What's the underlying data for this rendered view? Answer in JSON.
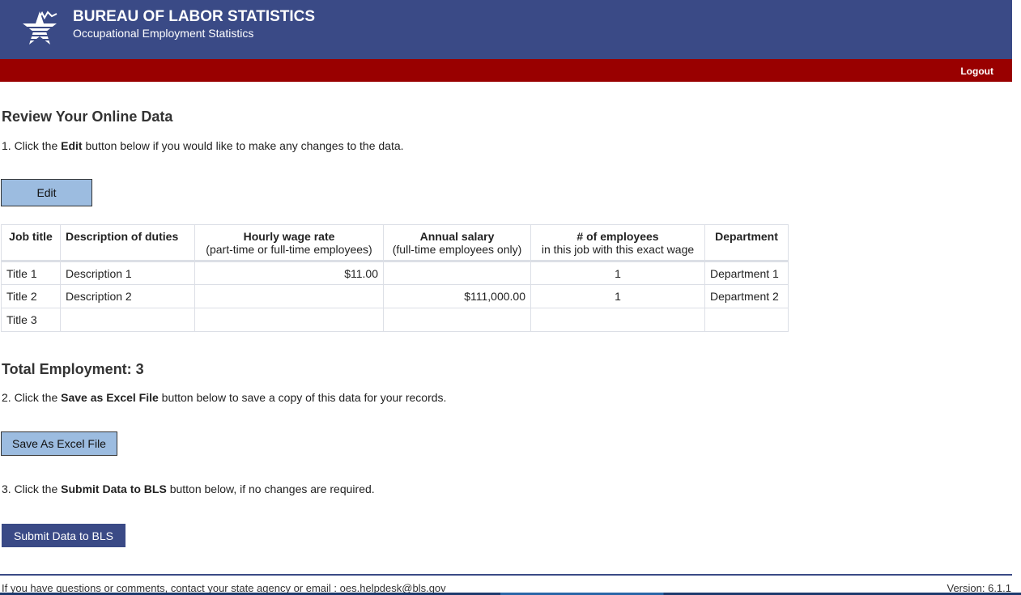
{
  "header": {
    "title": "BUREAU OF LABOR STATISTICS",
    "subtitle": "Occupational Employment Statistics",
    "logout": "Logout"
  },
  "colors": {
    "header": "#3a4a86",
    "redbar": "#990000",
    "button_light": "#9cbce0"
  },
  "main": {
    "title": "Review Your Online Data",
    "step1": {
      "pre": "1. Click the ",
      "bold": "Edit",
      "post": " button below if you would like to make any changes to the data."
    },
    "edit_label": "Edit",
    "table": {
      "headers": [
        {
          "title": "Job title",
          "sub": ""
        },
        {
          "title": "Description of duties",
          "sub": ""
        },
        {
          "title": "Hourly wage rate",
          "sub": "(part-time or full-time employees)"
        },
        {
          "title": "Annual salary",
          "sub": "(full-time employees only)"
        },
        {
          "title": "# of employees",
          "sub": "in this job with this exact wage"
        },
        {
          "title": "Department",
          "sub": ""
        }
      ],
      "rows": [
        [
          "Title 1",
          "Description 1",
          "$11.00",
          "",
          "1",
          "Department 1"
        ],
        [
          "Title 2",
          "Description 2",
          "",
          "$111,000.00",
          "1",
          "Department 2"
        ],
        [
          "Title 3",
          "",
          "",
          "",
          "",
          ""
        ]
      ]
    },
    "total": "Total Employment: 3",
    "step2": {
      "pre": "2. Click the ",
      "bold": "Save as Excel File",
      "post": " button below to save a copy of this data for your records."
    },
    "excel_label": "Save As Excel File",
    "step3": {
      "pre": "3. Click the ",
      "bold": "Submit Data to BLS",
      "post": " button below, if no changes are required."
    },
    "submit_label": "Submit Data to BLS"
  },
  "footer": {
    "text": "If you have questions or comments, contact your state agency or email : ",
    "email": "oes.helpdesk@bls.gov",
    "version": "Version: 6.1.1"
  }
}
